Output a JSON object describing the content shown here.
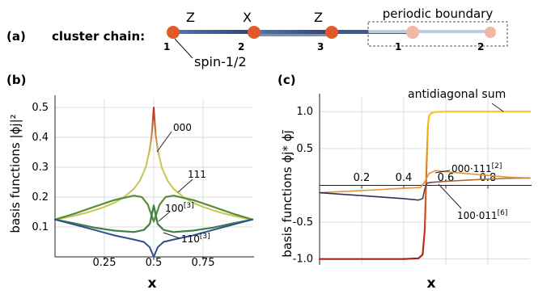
{
  "panel_a": {
    "label": "(a)",
    "title": "cluster chain:",
    "operators": [
      "Z",
      "X",
      "Z"
    ],
    "site_numbers": [
      "1",
      "2",
      "3",
      "1",
      "2"
    ],
    "spin_label": "spin-1/2",
    "boundary_label": "periodic boundary",
    "colors": {
      "node": "#e05a2b",
      "ghost_node": "#f1b8a3",
      "bond": "#3d5a8c",
      "ghost_bond": "#b9cbe0"
    }
  },
  "chart_data": [
    {
      "type": "line",
      "panel_label": "(b)",
      "title": "",
      "xlabel": "x",
      "ylabel": "basis functions |ϕj|²",
      "xlim": [
        0,
        1
      ],
      "ylim": [
        0,
        0.53
      ],
      "x_ticks": [
        0.25,
        0.5,
        0.75
      ],
      "x_tick_labels": [
        "0.25",
        "0.5",
        "0.75"
      ],
      "y_ticks": [
        0.1,
        0.2,
        0.3,
        0.4,
        0.5
      ],
      "y_tick_labels": [
        "0.1",
        "0.2",
        "0.3",
        "0.4",
        "0.5"
      ],
      "grid": true,
      "annotations": [
        {
          "text": "000",
          "sup": "",
          "series": "000"
        },
        {
          "text": "111",
          "sup": "",
          "series": "111"
        },
        {
          "text": "100",
          "sup": "[3]",
          "series": "100[3]"
        },
        {
          "text": "110",
          "sup": "[3]",
          "series": "110[3]"
        }
      ],
      "series": [
        {
          "key": "000",
          "color_top": "#c0302e",
          "color_bottom": "#c7c650",
          "points": [
            [
              0,
              0.125
            ],
            [
              0.05,
              0.131
            ],
            [
              0.1,
              0.138
            ],
            [
              0.15,
              0.146
            ],
            [
              0.2,
              0.156
            ],
            [
              0.25,
              0.167
            ],
            [
              0.3,
              0.181
            ],
            [
              0.35,
              0.2
            ],
            [
              0.4,
              0.228
            ],
            [
              0.43,
              0.255
            ],
            [
              0.46,
              0.3
            ],
            [
              0.48,
              0.36
            ],
            [
              0.49,
              0.41
            ],
            [
              0.5,
              0.5
            ],
            [
              0.51,
              0.41
            ],
            [
              0.52,
              0.36
            ],
            [
              0.54,
              0.3
            ],
            [
              0.57,
              0.255
            ],
            [
              0.6,
              0.228
            ],
            [
              0.65,
              0.2
            ],
            [
              0.7,
              0.181
            ],
            [
              0.75,
              0.167
            ],
            [
              0.8,
              0.156
            ],
            [
              0.85,
              0.146
            ],
            [
              0.9,
              0.138
            ],
            [
              0.95,
              0.131
            ],
            [
              1,
              0.125
            ]
          ]
        },
        {
          "key": "111",
          "color": "#5b8c3a",
          "points": [
            [
              0,
              0.125
            ],
            [
              0.1,
              0.145
            ],
            [
              0.2,
              0.168
            ],
            [
              0.3,
              0.19
            ],
            [
              0.4,
              0.205
            ],
            [
              0.44,
              0.2
            ],
            [
              0.47,
              0.175
            ],
            [
              0.5,
              0.118
            ],
            [
              0.53,
              0.175
            ],
            [
              0.56,
              0.2
            ],
            [
              0.6,
              0.205
            ],
            [
              0.7,
              0.19
            ],
            [
              0.8,
              0.168
            ],
            [
              0.9,
              0.145
            ],
            [
              1,
              0.125
            ]
          ]
        },
        {
          "key": "100[3]",
          "color": "#3f7f4a",
          "points": [
            [
              0,
              0.125
            ],
            [
              0.1,
              0.112
            ],
            [
              0.2,
              0.098
            ],
            [
              0.3,
              0.088
            ],
            [
              0.4,
              0.083
            ],
            [
              0.45,
              0.09
            ],
            [
              0.48,
              0.11
            ],
            [
              0.5,
              0.172
            ],
            [
              0.52,
              0.11
            ],
            [
              0.55,
              0.09
            ],
            [
              0.6,
              0.083
            ],
            [
              0.7,
              0.088
            ],
            [
              0.8,
              0.098
            ],
            [
              0.9,
              0.112
            ],
            [
              1,
              0.125
            ]
          ]
        },
        {
          "key": "110[3]",
          "color": "#2e4f8e",
          "points": [
            [
              0,
              0.125
            ],
            [
              0.1,
              0.108
            ],
            [
              0.2,
              0.09
            ],
            [
              0.3,
              0.072
            ],
            [
              0.4,
              0.058
            ],
            [
              0.45,
              0.05
            ],
            [
              0.48,
              0.032
            ],
            [
              0.5,
              0.0
            ],
            [
              0.52,
              0.032
            ],
            [
              0.55,
              0.05
            ],
            [
              0.6,
              0.058
            ],
            [
              0.7,
              0.072
            ],
            [
              0.8,
              0.09
            ],
            [
              0.9,
              0.108
            ],
            [
              1,
              0.125
            ]
          ]
        }
      ]
    },
    {
      "type": "line",
      "panel_label": "(c)",
      "title": "",
      "xlabel": "x",
      "ylabel": "basis functions ϕj* ϕj̄",
      "xlim": [
        0,
        1
      ],
      "ylim": [
        -1.08,
        1.2
      ],
      "x_ticks": [
        0.2,
        0.4,
        0.6,
        0.8
      ],
      "x_tick_labels": [
        "0.2",
        "0.4",
        "0.6",
        "0.8"
      ],
      "y_ticks": [
        -1.0,
        -0.5,
        0.5,
        1.0
      ],
      "y_tick_labels": [
        "-1.0",
        "-0.5",
        "0.5",
        "1.0"
      ],
      "grid": true,
      "annotations": [
        {
          "text": "antidiagonal sum",
          "sup": "",
          "series": "antidiagonal sum"
        },
        {
          "text": "000·111",
          "sup": "[2]",
          "series": "000·111[2]"
        },
        {
          "text": "100·011",
          "sup": "[6]",
          "series": "100·011[6]"
        }
      ],
      "series": [
        {
          "key": "antidiagonal sum",
          "color_top": "#f2c21a",
          "color_bottom": "#c0271d",
          "points": [
            [
              0,
              -1.0
            ],
            [
              0.1,
              -1.0
            ],
            [
              0.2,
              -1.0
            ],
            [
              0.3,
              -1.0
            ],
            [
              0.4,
              -1.0
            ],
            [
              0.47,
              -0.99
            ],
            [
              0.49,
              -0.94
            ],
            [
              0.5,
              -0.6
            ],
            [
              0.505,
              -0.1
            ],
            [
              0.51,
              0.4
            ],
            [
              0.515,
              0.8
            ],
            [
              0.52,
              0.94
            ],
            [
              0.53,
              0.98
            ],
            [
              0.55,
              0.995
            ],
            [
              0.6,
              1.0
            ],
            [
              0.8,
              1.0
            ],
            [
              1,
              1.0
            ]
          ]
        },
        {
          "key": "000·111[2]",
          "color": "#e8923a",
          "points": [
            [
              0,
              -0.1
            ],
            [
              0.1,
              -0.085
            ],
            [
              0.2,
              -0.07
            ],
            [
              0.3,
              -0.055
            ],
            [
              0.4,
              -0.04
            ],
            [
              0.48,
              -0.03
            ],
            [
              0.5,
              0.05
            ],
            [
              0.52,
              0.16
            ],
            [
              0.55,
              0.2
            ],
            [
              0.6,
              0.185
            ],
            [
              0.7,
              0.16
            ],
            [
              0.8,
              0.135
            ],
            [
              0.9,
              0.11
            ],
            [
              1,
              0.1
            ]
          ]
        },
        {
          "key": "100·011[6]",
          "color_left": "#2c3566",
          "color_right": "#c9873a",
          "points": [
            [
              0,
              -0.1
            ],
            [
              0.1,
              -0.12
            ],
            [
              0.2,
              -0.14
            ],
            [
              0.3,
              -0.16
            ],
            [
              0.4,
              -0.18
            ],
            [
              0.47,
              -0.2
            ],
            [
              0.49,
              -0.18
            ],
            [
              0.5,
              -0.05
            ],
            [
              0.51,
              0.03
            ],
            [
              0.53,
              0.04
            ],
            [
              0.6,
              0.055
            ],
            [
              0.7,
              0.07
            ],
            [
              0.8,
              0.085
            ],
            [
              0.9,
              0.095
            ],
            [
              1,
              0.1
            ]
          ]
        }
      ]
    }
  ]
}
